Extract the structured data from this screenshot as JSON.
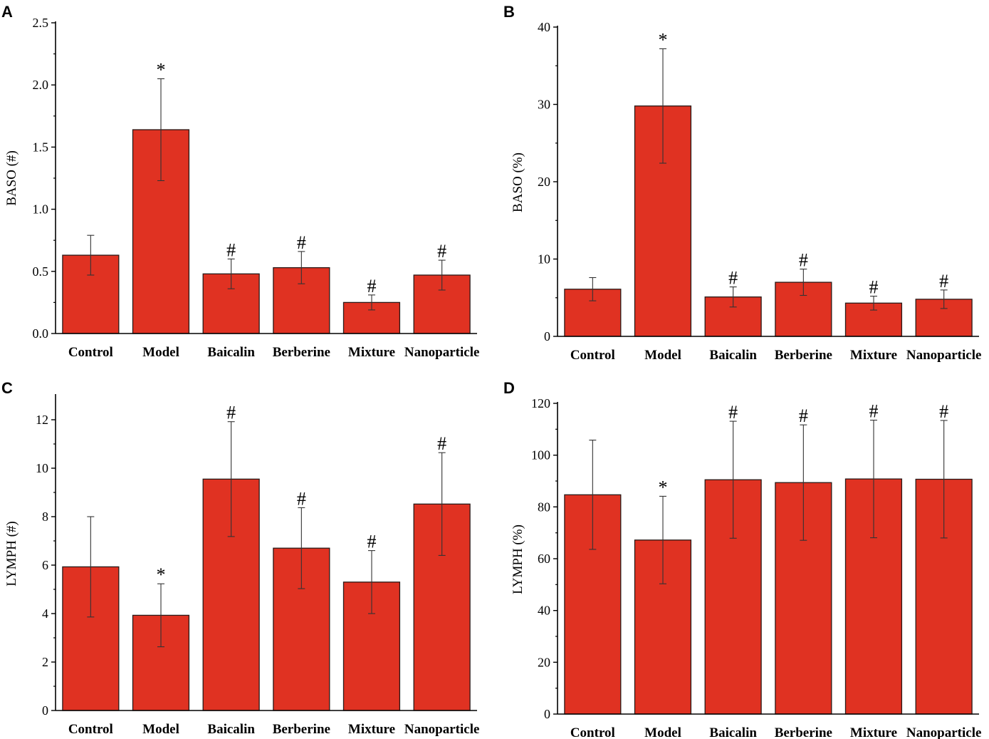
{
  "figure": {
    "colors": {
      "bar": "#e03222",
      "bar_stroke": "#2a1a18",
      "axis": "#000000",
      "error": "#333333"
    }
  },
  "chart_data": [
    {
      "panel": "A",
      "type": "bar",
      "ylabel": "BASO (#)",
      "categories": [
        "Control",
        "Model",
        "Baicalin",
        "Berberine",
        "Mixture",
        "Nanoparticle"
      ],
      "values": [
        0.63,
        1.64,
        0.48,
        0.53,
        0.25,
        0.47
      ],
      "errors": [
        0.16,
        0.41,
        0.12,
        0.13,
        0.06,
        0.12
      ],
      "significance": [
        "",
        "*",
        "#",
        "#",
        "#",
        "#"
      ],
      "ylim": [
        0,
        2.5
      ],
      "yticks": [
        "0.0",
        "0.5",
        "1.0",
        "1.5",
        "2.0",
        "2.5"
      ]
    },
    {
      "panel": "B",
      "type": "bar",
      "ylabel": "BASO (%)",
      "categories": [
        "Control",
        "Model",
        "Baicalin",
        "Berberine",
        "Mixture",
        "Nanoparticle"
      ],
      "values": [
        6.1,
        29.8,
        5.1,
        7.0,
        4.3,
        4.8
      ],
      "errors": [
        1.5,
        7.4,
        1.3,
        1.7,
        0.9,
        1.2
      ],
      "significance": [
        "",
        "*",
        "#",
        "#",
        "#",
        "#"
      ],
      "ylim": [
        0,
        40
      ],
      "yticks": [
        "0",
        "10",
        "20",
        "30",
        "40"
      ]
    },
    {
      "panel": "C",
      "type": "bar",
      "ylabel": "LYMPH (#)",
      "categories": [
        "Control",
        "Model",
        "Baicalin",
        "Berberine",
        "Mixture",
        "Nanoparticle"
      ],
      "values": [
        5.93,
        3.93,
        9.55,
        6.7,
        5.3,
        8.52
      ],
      "errors": [
        2.07,
        1.3,
        2.37,
        1.67,
        1.3,
        2.12
      ],
      "significance": [
        "",
        "*",
        "#",
        "#",
        "#",
        "#"
      ],
      "ylim": [
        0,
        13
      ],
      "yticks": [
        "0",
        "2",
        "4",
        "6",
        "8",
        "10",
        "12"
      ]
    },
    {
      "panel": "D",
      "type": "bar",
      "ylabel": "LYMPH (%)",
      "categories": [
        "Control",
        "Model",
        "Baicalin",
        "Berberine",
        "Mixture",
        "Nanoparticle"
      ],
      "values": [
        84.7,
        67.2,
        90.5,
        89.4,
        90.8,
        90.7
      ],
      "errors": [
        21.1,
        16.9,
        22.6,
        22.3,
        22.7,
        22.7
      ],
      "significance": [
        "",
        "*",
        "#",
        "#",
        "#",
        "#"
      ],
      "ylim": [
        0,
        120
      ],
      "yticks": [
        "0",
        "20",
        "40",
        "60",
        "80",
        "100",
        "120"
      ]
    }
  ]
}
